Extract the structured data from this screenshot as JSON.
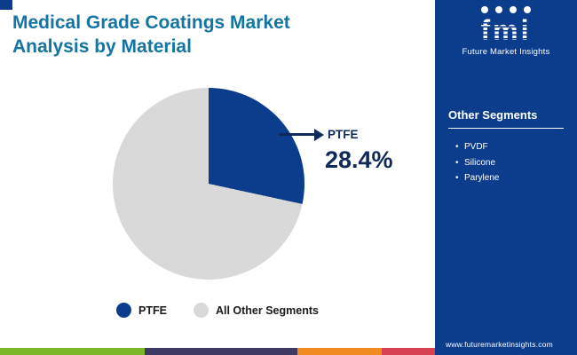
{
  "header": {
    "title_line1": "Medical Grade Coatings Market",
    "title_line2": "Analysis by Material"
  },
  "brand": {
    "logo_text": "fmi",
    "name": "Future Market Insights"
  },
  "chart_data": {
    "type": "pie",
    "title": "Medical Grade Coatings Market Analysis by Material",
    "labels": [
      "PTFE",
      "All Other Segments"
    ],
    "values": [
      28.4,
      71.6
    ],
    "colors": [
      "#0c3c8c",
      "#d9d9d9"
    ],
    "callout": {
      "label": "PTFE",
      "value": "28.4%"
    },
    "legend_position": "bottom"
  },
  "legend": [
    {
      "label": "PTFE",
      "color": "#0c3c8c"
    },
    {
      "label": "All Other Segments",
      "color": "#d9d9d9"
    }
  ],
  "sidebar": {
    "heading": "Other Segments",
    "items": [
      "PVDF",
      "Silicone",
      "Parylene"
    ],
    "website": "www.futuremarketinsights.com"
  },
  "colors": {
    "navy": "#0c3c8c",
    "title_teal": "#1474a4",
    "gray_slice": "#d9d9d9",
    "stripe": [
      "#7cb72a",
      "#3e3a64",
      "#f18a21",
      "#d64050"
    ]
  }
}
